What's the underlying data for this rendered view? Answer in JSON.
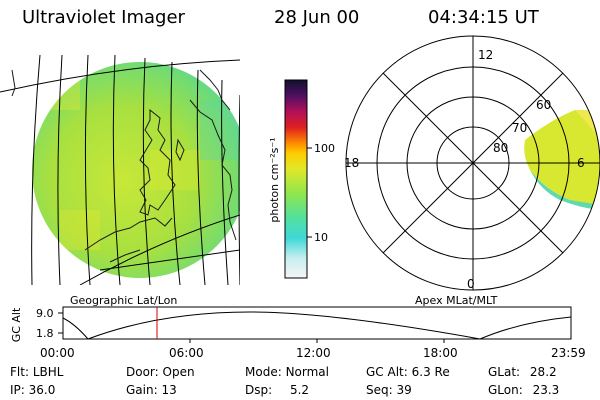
{
  "header": {
    "instrument": "Ultraviolet Imager",
    "date": "28 Jun 00",
    "time": "04:34:15 UT"
  },
  "colorbar": {
    "unit_label": "photon cm⁻²s⁻¹",
    "ticks": [
      "100",
      "10"
    ]
  },
  "geo_panel": {
    "caption": "Geographic Lat/Lon"
  },
  "polar_panel": {
    "caption": "Apex MLat/MLT",
    "mlt_labels": {
      "top": "12",
      "left": "18",
      "right": "6",
      "bottom": "0"
    },
    "lat_labels": [
      "60",
      "70",
      "80"
    ]
  },
  "altitude_plot": {
    "ylabel": "GC Alt",
    "yticks": [
      "9.0",
      "1.8"
    ],
    "xticks": [
      "00:00",
      "06:00",
      "12:00",
      "18:00",
      "23:59"
    ],
    "marker_time": "04:34"
  },
  "status": {
    "row1": [
      {
        "key": "Flt:",
        "value": "LBHL"
      },
      {
        "key": "Door:",
        "value": "Open"
      },
      {
        "key": "Mode:",
        "value": "Normal"
      },
      {
        "key": "GC Alt:",
        "value": "6.3 Re"
      },
      {
        "key": "GLat:",
        "value": "28.2"
      }
    ],
    "row2": [
      {
        "key": "IP:",
        "value": "36.0"
      },
      {
        "key": "Gain:",
        "value": "13"
      },
      {
        "key": "Dsp:",
        "value": "5.2"
      },
      {
        "key": "Seq:",
        "value": "39"
      },
      {
        "key": "GLon:",
        "value": "23.3"
      }
    ]
  },
  "colors": {
    "marker": "#d40000",
    "aurora": "#d8e830",
    "disk": "#b8e63c"
  }
}
